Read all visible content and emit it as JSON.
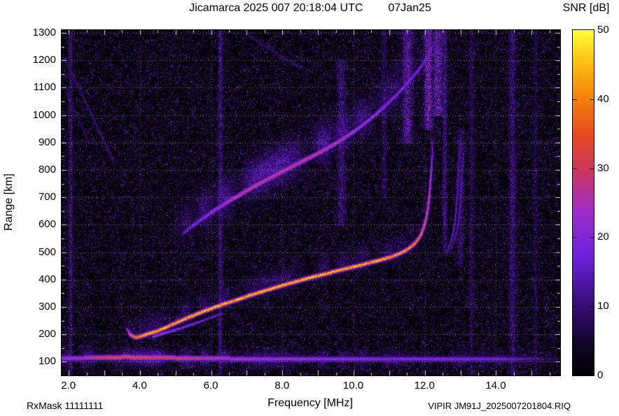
{
  "footer": {
    "rx_mask": "RxMask 11111111",
    "file_label": "VIPIR  JM91J_2025007201804.RIQ"
  },
  "chart_data": {
    "type": "heatmap",
    "subtype": "ionogram",
    "title": "Jicamarca 2025 007 20:18:04 UTC",
    "date_label": "07Jan25",
    "xlabel": "Frequency [MHz]",
    "ylabel": "Range [km]",
    "xlim": [
      1.8,
      15.8
    ],
    "ylim": [
      50,
      1310
    ],
    "xticks": [
      2,
      4,
      6,
      8,
      10,
      12,
      14
    ],
    "xtick_labels": [
      "2.0",
      "4.0",
      "6.0",
      "8.0",
      "10.0",
      "12.0",
      "14.0"
    ],
    "x_minor_step": 0.5,
    "yticks": [
      100,
      200,
      300,
      400,
      500,
      600,
      700,
      800,
      900,
      1000,
      1100,
      1200,
      1300
    ],
    "ytick_labels": [
      "100",
      "200",
      "300",
      "400",
      "500",
      "600",
      "700",
      "800",
      "900",
      "1000",
      "1100",
      "1200",
      "1300"
    ],
    "y_minor_step": 50,
    "grid": {
      "style": "dotted-white",
      "horizontal_every_km": 100,
      "vertical_every_mhz": 2
    },
    "background": "#000000",
    "colorbar": {
      "label": "SNR [dB]",
      "min": 0,
      "max": 50,
      "ticks": [
        0,
        10,
        20,
        30,
        40,
        50
      ]
    },
    "palette_stops": [
      {
        "v": 0.0,
        "c": [
          0,
          0,
          0
        ]
      },
      {
        "v": 0.1,
        "c": [
          20,
          5,
          45
        ]
      },
      {
        "v": 0.22,
        "c": [
          60,
          15,
          130
        ]
      },
      {
        "v": 0.35,
        "c": [
          110,
          35,
          220
        ]
      },
      {
        "v": 0.48,
        "c": [
          160,
          45,
          195
        ]
      },
      {
        "v": 0.6,
        "c": [
          205,
          55,
          90
        ]
      },
      {
        "v": 0.7,
        "c": [
          230,
          75,
          30
        ]
      },
      {
        "v": 0.82,
        "c": [
          245,
          140,
          10
        ]
      },
      {
        "v": 0.92,
        "c": [
          252,
          200,
          20
        ]
      },
      {
        "v": 1.0,
        "c": [
          255,
          255,
          60
        ]
      }
    ],
    "noise": {
      "seed": 20250107,
      "density_exp": 8,
      "max_norm": 0.45
    },
    "traces": [
      {
        "name": "F-layer-main-trace",
        "core_sigma_km": 5.5,
        "halo_sigma_km": 34,
        "halo_amp_rel": 0.18,
        "halo_skew": -0.7,
        "points": [
          [
            3.62,
            222,
            18
          ],
          [
            3.72,
            200,
            35
          ],
          [
            3.85,
            190,
            43
          ],
          [
            4.0,
            193,
            45
          ],
          [
            4.15,
            200,
            50
          ],
          [
            4.4,
            210,
            50
          ],
          [
            4.7,
            225,
            49
          ],
          [
            5.0,
            243,
            48
          ],
          [
            5.3,
            260,
            50
          ],
          [
            5.6,
            276,
            50
          ],
          [
            5.9,
            291,
            50
          ],
          [
            6.2,
            305,
            50
          ],
          [
            6.5,
            318,
            48
          ],
          [
            6.8,
            331,
            50
          ],
          [
            7.1,
            344,
            50
          ],
          [
            7.4,
            356,
            50
          ],
          [
            7.7,
            368,
            50
          ],
          [
            8.0,
            380,
            50
          ],
          [
            8.3,
            391,
            48
          ],
          [
            8.6,
            402,
            50
          ],
          [
            8.9,
            412,
            50
          ],
          [
            9.2,
            422,
            50
          ],
          [
            9.5,
            432,
            48
          ],
          [
            9.8,
            442,
            50
          ],
          [
            10.1,
            451,
            50
          ],
          [
            10.4,
            461,
            48
          ],
          [
            10.7,
            471,
            50
          ],
          [
            11.0,
            482,
            47
          ],
          [
            11.25,
            494,
            46
          ],
          [
            11.45,
            507,
            45
          ],
          [
            11.62,
            522,
            44
          ],
          [
            11.76,
            540,
            42
          ],
          [
            11.87,
            562,
            40
          ],
          [
            11.96,
            590,
            38
          ],
          [
            12.03,
            625,
            35
          ],
          [
            12.08,
            665,
            32
          ],
          [
            12.12,
            710,
            30
          ],
          [
            12.15,
            760,
            27
          ],
          [
            12.18,
            815,
            22
          ],
          [
            12.2,
            870,
            17
          ],
          [
            12.21,
            910,
            12
          ]
        ]
      },
      {
        "name": "F-layer-inner-echo",
        "core_sigma_km": 4,
        "halo_sigma_km": 0,
        "halo_amp_rel": 0,
        "halo_skew": 0,
        "points": [
          [
            4.35,
            192,
            25
          ],
          [
            4.7,
            207,
            25
          ],
          [
            5.1,
            222,
            22
          ],
          [
            5.5,
            240,
            20
          ],
          [
            5.9,
            258,
            17
          ],
          [
            6.3,
            276,
            15
          ]
        ]
      },
      {
        "name": "second-hop-spread-trace",
        "core_sigma_km": 7,
        "halo_sigma_km": 55,
        "halo_amp_rel": 0.5,
        "halo_skew": -0.5,
        "points": [
          [
            5.2,
            570,
            15
          ],
          [
            5.5,
            600,
            19
          ],
          [
            5.8,
            628,
            22
          ],
          [
            6.1,
            655,
            25
          ],
          [
            6.4,
            680,
            27
          ],
          [
            6.7,
            703,
            30
          ],
          [
            7.0,
            726,
            31
          ],
          [
            7.3,
            748,
            31
          ],
          [
            7.6,
            769,
            30
          ],
          [
            7.9,
            789,
            31
          ],
          [
            8.2,
            809,
            31
          ],
          [
            8.5,
            829,
            30
          ],
          [
            8.8,
            849,
            31
          ],
          [
            9.1,
            869,
            30
          ],
          [
            9.4,
            891,
            29
          ],
          [
            9.7,
            915,
            27
          ],
          [
            10.0,
            941,
            25
          ],
          [
            10.3,
            970,
            25
          ],
          [
            10.6,
            1002,
            24
          ],
          [
            10.9,
            1037,
            22
          ],
          [
            11.2,
            1075,
            21
          ],
          [
            11.5,
            1117,
            20
          ],
          [
            11.8,
            1163,
            19
          ],
          [
            12.0,
            1200,
            17
          ],
          [
            12.15,
            1235,
            16
          ],
          [
            12.25,
            1262,
            14
          ]
        ]
      },
      {
        "name": "x-mode-vertical-trace-1",
        "core_sigma_km": 4,
        "halo_sigma_km": 14,
        "halo_amp_rel": 0.3,
        "halo_skew": 0,
        "points": [
          [
            12.62,
            505,
            12
          ],
          [
            12.72,
            535,
            15
          ],
          [
            12.8,
            580,
            17
          ],
          [
            12.86,
            640,
            17
          ],
          [
            12.9,
            710,
            16
          ],
          [
            12.93,
            790,
            15
          ],
          [
            12.95,
            860,
            12
          ],
          [
            12.96,
            895,
            10
          ]
        ]
      },
      {
        "name": "x-mode-vertical-trace-2",
        "core_sigma_km": 4,
        "halo_sigma_km": 14,
        "halo_amp_rel": 0.3,
        "halo_skew": 0,
        "points": [
          [
            12.74,
            515,
            11
          ],
          [
            12.84,
            550,
            13
          ],
          [
            12.92,
            600,
            15
          ],
          [
            12.98,
            665,
            15
          ],
          [
            13.02,
            740,
            14
          ],
          [
            13.05,
            815,
            12
          ],
          [
            13.07,
            878,
            10
          ]
        ]
      },
      {
        "name": "interference-streak-1",
        "core_sigma_km": 4,
        "halo_sigma_km": 0,
        "halo_amp_rel": 0,
        "halo_skew": 0,
        "points": [
          [
            1.85,
            1215,
            9
          ],
          [
            2.6,
            1010,
            10
          ],
          [
            3.25,
            835,
            9
          ]
        ]
      },
      {
        "name": "interference-streak-2",
        "core_sigma_km": 3.5,
        "halo_sigma_km": 0,
        "halo_amp_rel": 0,
        "halo_skew": 0,
        "points": [
          [
            1.9,
            1090,
            7
          ],
          [
            2.55,
            905,
            8
          ]
        ]
      },
      {
        "name": "interference-streak-3",
        "core_sigma_km": 4,
        "halo_sigma_km": 0,
        "halo_amp_rel": 0,
        "halo_skew": 0,
        "points": [
          [
            7.05,
            1290,
            8
          ],
          [
            7.8,
            1228,
            9
          ],
          [
            8.55,
            1170,
            8
          ]
        ]
      },
      {
        "name": "ground-noise-band-100km",
        "core_sigma_km": 7,
        "halo_sigma_km": 24,
        "halo_amp_rel": 0.5,
        "halo_skew": 0,
        "points": [
          [
            1.8,
            115,
            25
          ],
          [
            2.4,
            115,
            28
          ],
          [
            3.0,
            116,
            34
          ],
          [
            3.6,
            118,
            36
          ],
          [
            4.2,
            116,
            35
          ],
          [
            5.0,
            115,
            33
          ],
          [
            6.0,
            113,
            29
          ],
          [
            7.0,
            112,
            26
          ],
          [
            8.0,
            112,
            24
          ],
          [
            9.0,
            112,
            23
          ],
          [
            10.0,
            112,
            22
          ],
          [
            11.0,
            112,
            21
          ],
          [
            12.0,
            112,
            21
          ],
          [
            13.0,
            112,
            20
          ],
          [
            14.0,
            112,
            19
          ],
          [
            14.8,
            112,
            15
          ],
          [
            15.4,
            110,
            9
          ],
          [
            15.8,
            110,
            6
          ]
        ]
      }
    ],
    "rfi_stripes": [
      {
        "f": 2.05,
        "sigma_mhz": 0.04,
        "amp_db": 15,
        "km_range": [
          50,
          1310
        ]
      },
      {
        "f": 6.25,
        "sigma_mhz": 0.05,
        "amp_db": 17,
        "km_range": [
          50,
          1310
        ]
      },
      {
        "f": 9.65,
        "sigma_mhz": 0.1,
        "amp_db": 15,
        "km_range": [
          600,
          1200
        ]
      },
      {
        "f": 10.85,
        "sigma_mhz": 0.06,
        "amp_db": 12,
        "km_range": [
          700,
          1310
        ]
      },
      {
        "f": 11.5,
        "sigma_mhz": 0.12,
        "amp_db": 22,
        "km_range": [
          900,
          1310
        ]
      },
      {
        "f": 12.1,
        "sigma_mhz": 0.1,
        "amp_db": 27,
        "km_range": [
          950,
          1310
        ]
      },
      {
        "f": 12.35,
        "sigma_mhz": 0.12,
        "amp_db": 25,
        "km_range": [
          1000,
          1310
        ]
      },
      {
        "f": 12.55,
        "sigma_mhz": 0.05,
        "amp_db": 17,
        "km_range": [
          500,
          1310
        ]
      },
      {
        "f": 13.0,
        "sigma_mhz": 0.06,
        "amp_db": 15,
        "km_range": [
          450,
          950
        ]
      },
      {
        "f": 13.3,
        "sigma_mhz": 0.05,
        "amp_db": 12,
        "km_range": [
          50,
          1310
        ]
      },
      {
        "f": 14.45,
        "sigma_mhz": 0.08,
        "amp_db": 15,
        "km_range": [
          50,
          1310
        ]
      },
      {
        "f": 15.1,
        "sigma_mhz": 0.05,
        "amp_db": 10,
        "km_range": [
          50,
          1310
        ]
      }
    ]
  }
}
